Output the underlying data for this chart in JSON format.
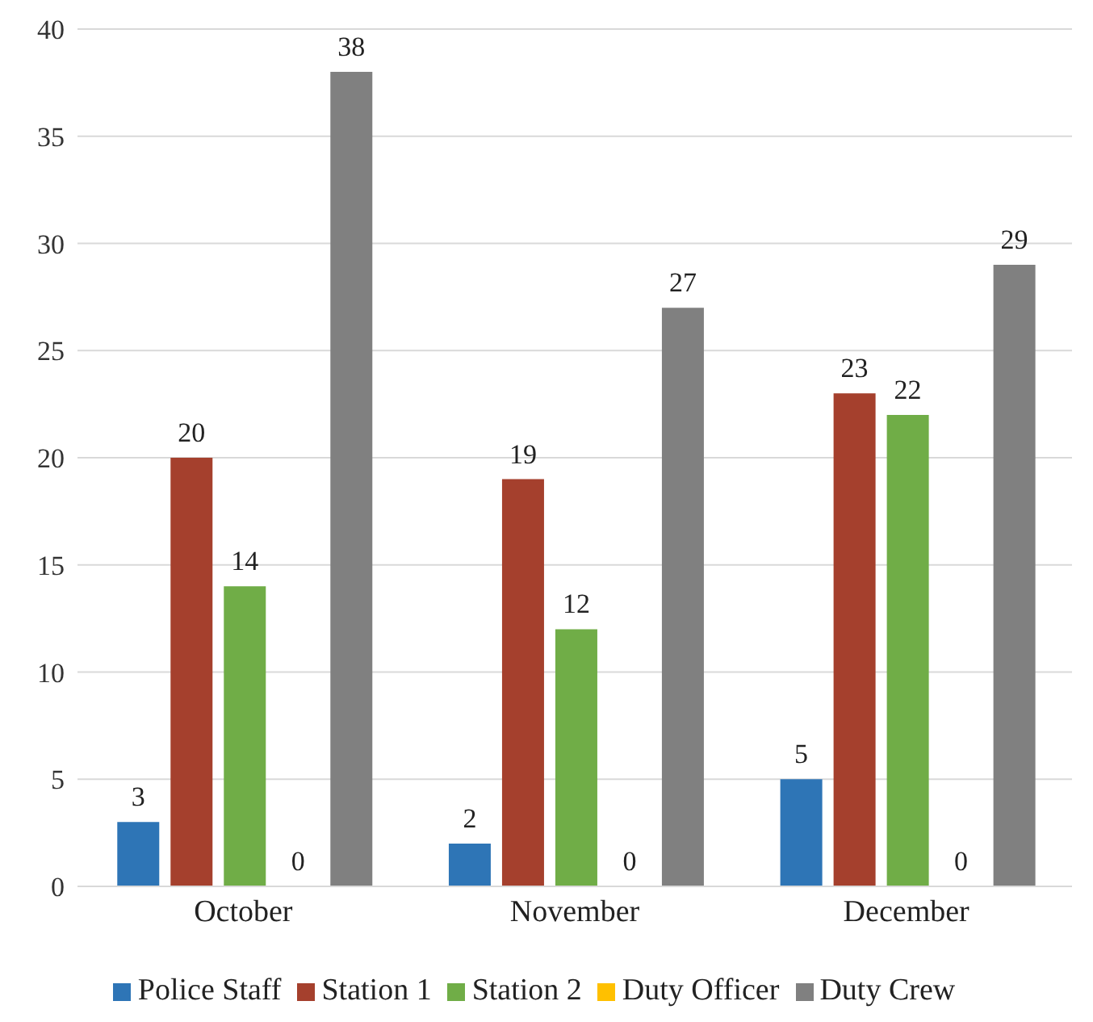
{
  "chart_data": {
    "type": "bar",
    "categories": [
      "October",
      "November",
      "December"
    ],
    "series": [
      {
        "name": "Police Staff",
        "color": "#2e75b6",
        "values": [
          3,
          2,
          5
        ]
      },
      {
        "name": "Station 1",
        "color": "#a5402d",
        "values": [
          20,
          19,
          23
        ]
      },
      {
        "name": "Station 2",
        "color": "#70ad47",
        "values": [
          14,
          12,
          22
        ]
      },
      {
        "name": "Duty Officer",
        "color": "#ffc000",
        "values": [
          0,
          0,
          0
        ]
      },
      {
        "name": "Duty Crew",
        "color": "#808080",
        "values": [
          38,
          27,
          29
        ]
      }
    ],
    "ylim": [
      0,
      40
    ],
    "yticks": [
      0,
      5,
      10,
      15,
      20,
      25,
      30,
      35,
      40
    ],
    "grid": "y",
    "legend": "bottom",
    "data_labels": true
  }
}
